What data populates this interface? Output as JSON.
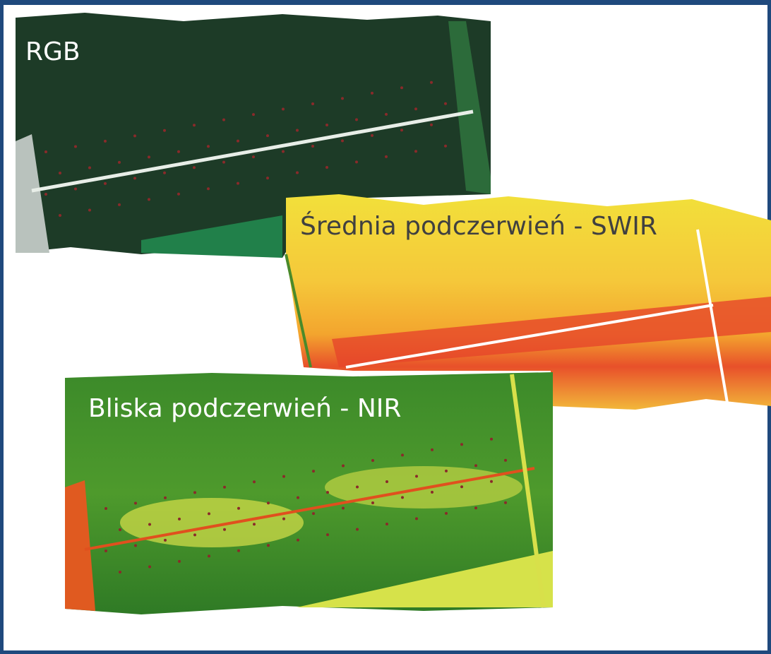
{
  "panels": [
    {
      "label": "RGB"
    },
    {
      "label": "Średnia podczerwień - SWIR"
    },
    {
      "label": "Bliska podczerwień - NIR"
    }
  ]
}
